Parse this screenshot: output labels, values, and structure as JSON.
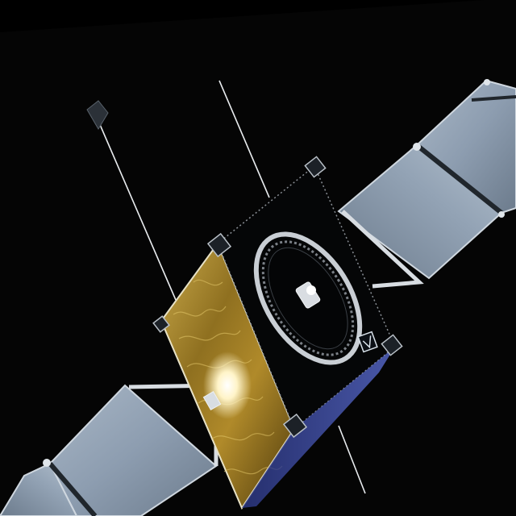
{
  "scene": {
    "subject": "satellite",
    "background_color": "#000000",
    "frame_tilt_color": "#090909"
  },
  "satellite": {
    "bus_face_color": "#050607",
    "gold_foil_color": "#b08a2a",
    "gold_foil_shadow_color": "#5a4310",
    "foil_highlight_color": "#fff4c8",
    "solar_panel_color": "#8d9db0",
    "solar_panel_dark_color": "#5d6c7c",
    "solar_strut_color": "#d8dde2",
    "ring_color": "#c9ced4",
    "blue_side_color": "#3f4fa8"
  },
  "icons": {
    "antenna_ring": "ring-icon",
    "logo_badge": "badge-icon"
  }
}
